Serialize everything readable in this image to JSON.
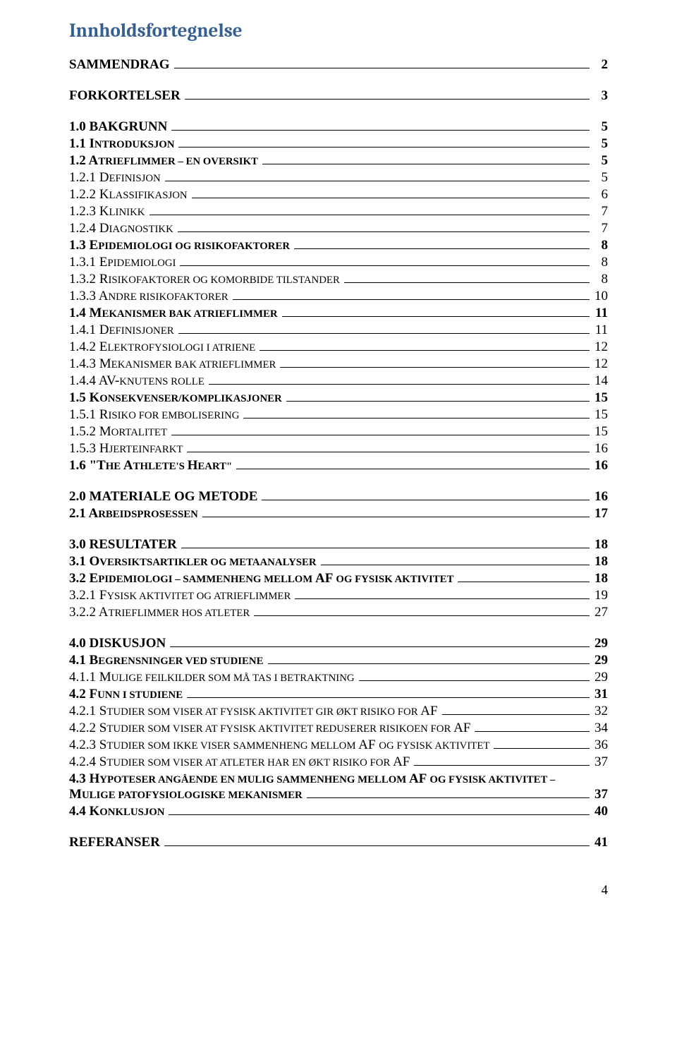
{
  "title": "Innholdsfortegnelse",
  "title_color": "#365f91",
  "text_color": "#000000",
  "background_color": "#ffffff",
  "font_family": "Times New Roman",
  "title_font_family": "Cambria",
  "page_number": "4",
  "entries": [
    {
      "level": 0,
      "label": "SAMMENDRAG",
      "page": "2"
    },
    {
      "level": 0,
      "label": "FORKORTELSER",
      "page": "3"
    },
    {
      "level": 0,
      "label": "1.0 BAKGRUNN",
      "page": "5"
    },
    {
      "level": 1,
      "lead": "1.1 I",
      "rest": "NTRODUKSJON",
      "page": "5"
    },
    {
      "level": 1,
      "lead": "1.2 A",
      "rest": "TRIEFLIMMER – EN OVERSIKT",
      "page": "5"
    },
    {
      "level": 2,
      "lead": "1.2.1 D",
      "rest": "EFINISJON",
      "page": "5"
    },
    {
      "level": 2,
      "lead": "1.2.2 K",
      "rest": "LASSIFIKASJON",
      "page": "6"
    },
    {
      "level": 2,
      "lead": "1.2.3 K",
      "rest": "LINIKK",
      "page": "7"
    },
    {
      "level": 2,
      "lead": "1.2.4 D",
      "rest": "IAGNOSTIKK",
      "page": "7"
    },
    {
      "level": 1,
      "lead": "1.3 E",
      "rest": "PIDEMIOLOGI OG RISIKOFAKTORER",
      "page": "8"
    },
    {
      "level": 2,
      "lead": "1.3.1 E",
      "rest": "PIDEMIOLOGI",
      "page": "8"
    },
    {
      "level": 2,
      "lead": "1.3.2 R",
      "rest": "ISIKOFAKTORER OG KOMORBIDE TILSTANDER",
      "page": "8"
    },
    {
      "level": 2,
      "lead": "1.3.3 A",
      "rest": "NDRE RISIKOFAKTORER",
      "page": "10"
    },
    {
      "level": 1,
      "lead": "1.4 M",
      "rest": "EKANISMER BAK ATRIEFLIMMER",
      "page": "11"
    },
    {
      "level": 2,
      "lead": "1.4.1 D",
      "rest": "EFINISJONER",
      "page": "11"
    },
    {
      "level": 2,
      "lead": "1.4.2 E",
      "rest": "LEKTROFYSIOLOGI I ATRIENE",
      "page": "12"
    },
    {
      "level": 2,
      "lead": "1.4.3 M",
      "rest": "EKANISMER BAK ATRIEFLIMMER",
      "page": "12"
    },
    {
      "level": 2,
      "lead": "1.4.4 AV-",
      "rest": "KNUTENS ROLLE",
      "page": "14"
    },
    {
      "level": 1,
      "lead": "1.5 K",
      "rest": "ONSEKVENSER/KOMPLIKASJONER",
      "page": "15"
    },
    {
      "level": 2,
      "lead": "1.5.1 R",
      "rest": "ISIKO FOR EMBOLISERING",
      "page": "15"
    },
    {
      "level": 2,
      "lead": "1.5.2 M",
      "rest": "ORTALITET",
      "page": "15"
    },
    {
      "level": 2,
      "lead": "1.5.3 H",
      "rest": "JERTEINFARKT",
      "page": "16"
    },
    {
      "level": 1,
      "lead": "1.6 \"T",
      "rest": "HE ",
      "lead2": "A",
      "rest2": "THLETE'S ",
      "lead3": "H",
      "rest3": "EART\"",
      "page": "16"
    },
    {
      "level": 0,
      "label": "2.0 MATERIALE OG METODE",
      "page": "16"
    },
    {
      "level": 1,
      "lead": "2.1 A",
      "rest": "RBEIDSPROSESSEN",
      "page": "17"
    },
    {
      "level": 0,
      "label": "3.0 RESULTATER",
      "page": "18"
    },
    {
      "level": 1,
      "lead": "3.1 O",
      "rest": "VERSIKTSARTIKLER OG METAANALYSER",
      "page": "18"
    },
    {
      "level": 1,
      "lead": "3.2 E",
      "rest": "PIDEMIOLOGI – SAMMENHENG MELLOM ",
      "lead2": "AF ",
      "rest2": "OG FYSISK AKTIVITET",
      "page": "18"
    },
    {
      "level": 2,
      "lead": "3.2.1 F",
      "rest": "YSISK AKTIVITET OG ATRIEFLIMMER",
      "page": "19"
    },
    {
      "level": 2,
      "lead": "3.2.2 A",
      "rest": "TRIEFLIMMER HOS ATLETER",
      "page": "27"
    },
    {
      "level": 0,
      "label": "4.0 DISKUSJON",
      "page": "29"
    },
    {
      "level": 1,
      "lead": "4.1 B",
      "rest": "EGRENSNINGER VED STUDIENE",
      "page": "29"
    },
    {
      "level": 2,
      "lead": "4.1.1 M",
      "rest": "ULIGE FEILKILDER SOM MÅ TAS I BETRAKTNING",
      "page": "29"
    },
    {
      "level": 1,
      "lead": "4.2 F",
      "rest": "UNN I STUDIENE",
      "page": "31"
    },
    {
      "level": 2,
      "lead": "4.2.1 S",
      "rest": "TUDIER SOM VISER AT FYSISK AKTIVITET GIR ØKT RISIKO FOR ",
      "lead2": "AF",
      "page": "32"
    },
    {
      "level": 2,
      "lead": "4.2.2 S",
      "rest": "TUDIER SOM VISER AT FYSISK AKTIVITET REDUSERER RISIKOEN FOR ",
      "lead2": "AF",
      "page": "34"
    },
    {
      "level": 2,
      "lead": "4.2.3 S",
      "rest": "TUDIER SOM IKKE VISER SAMMENHENG MELLOM ",
      "lead2": "AF ",
      "rest2": "OG FYSISK AKTIVITET",
      "page": "36"
    },
    {
      "level": 2,
      "lead": "4.2.4 S",
      "rest": "TUDIER SOM VISER AT ATLETER HAR EN ØKT RISIKO FOR ",
      "lead2": "AF",
      "page": "37"
    },
    {
      "level": 1,
      "lead": "4.3 H",
      "rest": "YPOTESER ANGÅENDE EN MULIG SAMMENHENG MELLOM ",
      "lead2": "AF ",
      "rest2": "OG FYSISK AKTIVITET – ",
      "break": true,
      "lead3": "M",
      "rest3": "ULIGE PATOFYSIOLOGISKE MEKANISMER",
      "page": "37"
    },
    {
      "level": 1,
      "lead": "4.4 K",
      "rest": "ONKLUSJON",
      "page": "40"
    },
    {
      "level": 0,
      "label": "REFERANSER",
      "page": "41"
    }
  ]
}
